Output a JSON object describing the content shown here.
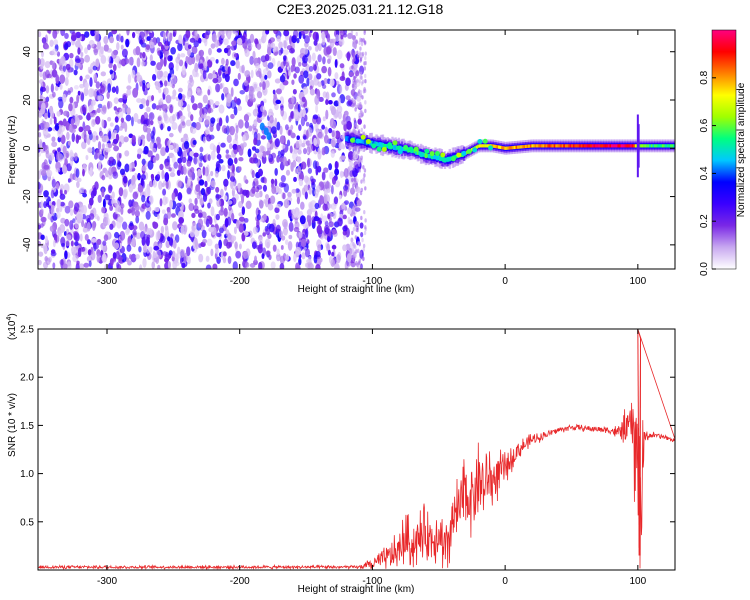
{
  "title": "C2E3.2025.031.21.12.G18",
  "chart_data": [
    {
      "type": "heatmap",
      "name": "spectrogram",
      "xlabel": "Height of straight line (km)",
      "ylabel": "Frequency (Hz)",
      "xlim": [
        -352,
        128
      ],
      "ylim": [
        -50,
        49
      ],
      "xticks": [
        -300,
        -200,
        -100,
        0,
        100
      ],
      "yticks": [
        -40,
        -20,
        0,
        20,
        40
      ],
      "colorbar": {
        "label": "Normalized spectral amplitude",
        "range": [
          0,
          1
        ],
        "ticks": [
          "0.0",
          "0.2",
          "0.4",
          "0.6",
          "0.8"
        ],
        "tick_values": [
          0.0,
          0.2,
          0.4,
          0.6,
          0.8
        ],
        "colormap": [
          "#ffffff",
          "#c8a8f0",
          "#7a28e6",
          "#3a00ff",
          "#0000ff",
          "#00c8ff",
          "#00ff80",
          "#a0ff00",
          "#ffff00",
          "#ff8000",
          "#ff0000",
          "#ff0080"
        ]
      },
      "noise_region_x": [
        -352,
        -108
      ],
      "signal_ridge": {
        "x": [
          -120,
          -110,
          -100,
          -90,
          -80,
          -70,
          -60,
          -50,
          -45,
          -40,
          -30,
          -20,
          -10,
          0,
          20,
          40,
          60,
          80,
          95,
          100,
          110,
          128
        ],
        "y": [
          4,
          3,
          2,
          1,
          0,
          -1,
          -3,
          -4,
          -5,
          -4,
          -2,
          1,
          1,
          0,
          1,
          1,
          1,
          1,
          1,
          1,
          1,
          1
        ],
        "amplitude": [
          0.4,
          0.45,
          0.45,
          0.5,
          0.5,
          0.55,
          0.55,
          0.5,
          0.45,
          0.5,
          0.6,
          0.7,
          0.75,
          0.8,
          0.8,
          0.85,
          0.9,
          0.95,
          0.95,
          0.6,
          0.55,
          0.55
        ]
      }
    },
    {
      "type": "line",
      "name": "snr",
      "xlabel": "Height of straight line (km)",
      "ylabel": "SNR (10 * v/v)",
      "y_scale_note": "(x10",
      "y_scale_exp": "4",
      "xlim": [
        -352,
        128
      ],
      "ylim": [
        0,
        2.5
      ],
      "xticks": [
        -300,
        -200,
        -100,
        0,
        100
      ],
      "yticks": [
        0.5,
        1.0,
        1.5,
        2.0,
        2.5
      ],
      "ytick_labels": [
        "0.5",
        "1.0",
        "1.5",
        "2.0",
        "2.5"
      ],
      "series": [
        {
          "color": "#e8282a",
          "x": [
            -352,
            -300,
            -250,
            -200,
            -150,
            -110,
            -100,
            -90,
            -80,
            -75,
            -70,
            -60,
            -55,
            -50,
            -45,
            -40,
            -35,
            -30,
            -25,
            -20,
            -15,
            -12,
            -10,
            -5,
            0,
            5,
            10,
            20,
            30,
            40,
            50,
            60,
            70,
            80,
            85,
            90,
            95,
            98,
            100,
            102,
            105,
            110,
            120,
            128
          ],
          "y": [
            0.03,
            0.03,
            0.03,
            0.03,
            0.03,
            0.03,
            0.06,
            0.12,
            0.2,
            0.35,
            0.25,
            0.4,
            0.3,
            0.45,
            0.15,
            0.5,
            0.6,
            0.8,
            0.75,
            0.95,
            0.85,
            1.0,
            0.9,
            1.0,
            1.05,
            1.15,
            1.25,
            1.35,
            1.4,
            1.45,
            1.48,
            1.47,
            1.46,
            1.45,
            1.42,
            1.48,
            1.5,
            1.3,
            1.0,
            0.6,
            1.38,
            1.4,
            1.38,
            1.34
          ],
          "noise": [
            0.02,
            0.02,
            0.02,
            0.02,
            0.02,
            0.02,
            0.08,
            0.15,
            0.25,
            0.35,
            0.3,
            0.35,
            0.3,
            0.4,
            0.35,
            0.45,
            0.45,
            0.5,
            0.45,
            0.5,
            0.45,
            0.4,
            0.35,
            0.3,
            0.2,
            0.15,
            0.12,
            0.08,
            0.05,
            0.04,
            0.04,
            0.04,
            0.04,
            0.05,
            0.1,
            0.2,
            0.3,
            0.9,
            1.2,
            1.3,
            0.1,
            0.04,
            0.03,
            0.03
          ],
          "spikes": [
            {
              "x": 100,
              "y": 2.5
            },
            {
              "x": 102,
              "y": 2.4
            },
            {
              "x": 101,
              "y": 0.15
            }
          ]
        }
      ]
    }
  ]
}
